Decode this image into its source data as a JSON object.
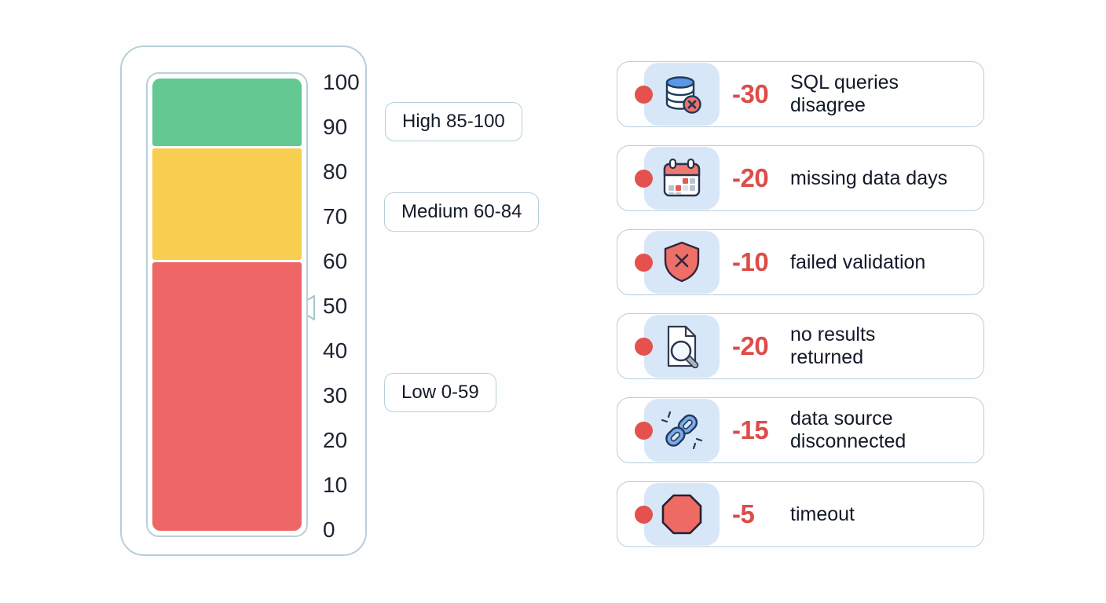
{
  "gauge": {
    "ticks": [
      "100",
      "90",
      "80",
      "70",
      "60",
      "50",
      "40",
      "30",
      "20",
      "10",
      "0"
    ],
    "tick_values": [
      100,
      90,
      80,
      70,
      60,
      50,
      40,
      30,
      20,
      10,
      0
    ],
    "pointer_value": 50,
    "axis_range": [
      0,
      100
    ],
    "bands": [
      {
        "name": "high",
        "label": "High 85-100",
        "min": 85,
        "max": 100,
        "color": "#63c892"
      },
      {
        "name": "medium",
        "label": "Medium 60-84",
        "min": 60,
        "max": 85,
        "color": "#f8ce50"
      },
      {
        "name": "low",
        "label": "Low 0-59",
        "min": 0,
        "max": 60,
        "color": "#ee6666"
      }
    ]
  },
  "penalties": {
    "items": [
      {
        "points": "-30",
        "label": "SQL queries\ndisagree",
        "icon": "database-error"
      },
      {
        "points": "-20",
        "label": "missing data days",
        "icon": "calendar"
      },
      {
        "points": "-10",
        "label": "failed validation",
        "icon": "shield-x"
      },
      {
        "points": "-20",
        "label": "no results\nreturned",
        "icon": "document-search"
      },
      {
        "points": "-15",
        "label": "data source\ndisconnected",
        "icon": "broken-link"
      },
      {
        "points": "-5",
        "label": "timeout",
        "icon": "stop-octagon"
      }
    ]
  },
  "colors": {
    "border_blue": "#b5cfdb",
    "tile_blue": "#d8e7f8",
    "penalty_red": "#dd4c48",
    "dot_red": "#e5524d",
    "band_green": "#63c892",
    "band_yellow": "#f8ce50",
    "band_red": "#ee6666"
  }
}
